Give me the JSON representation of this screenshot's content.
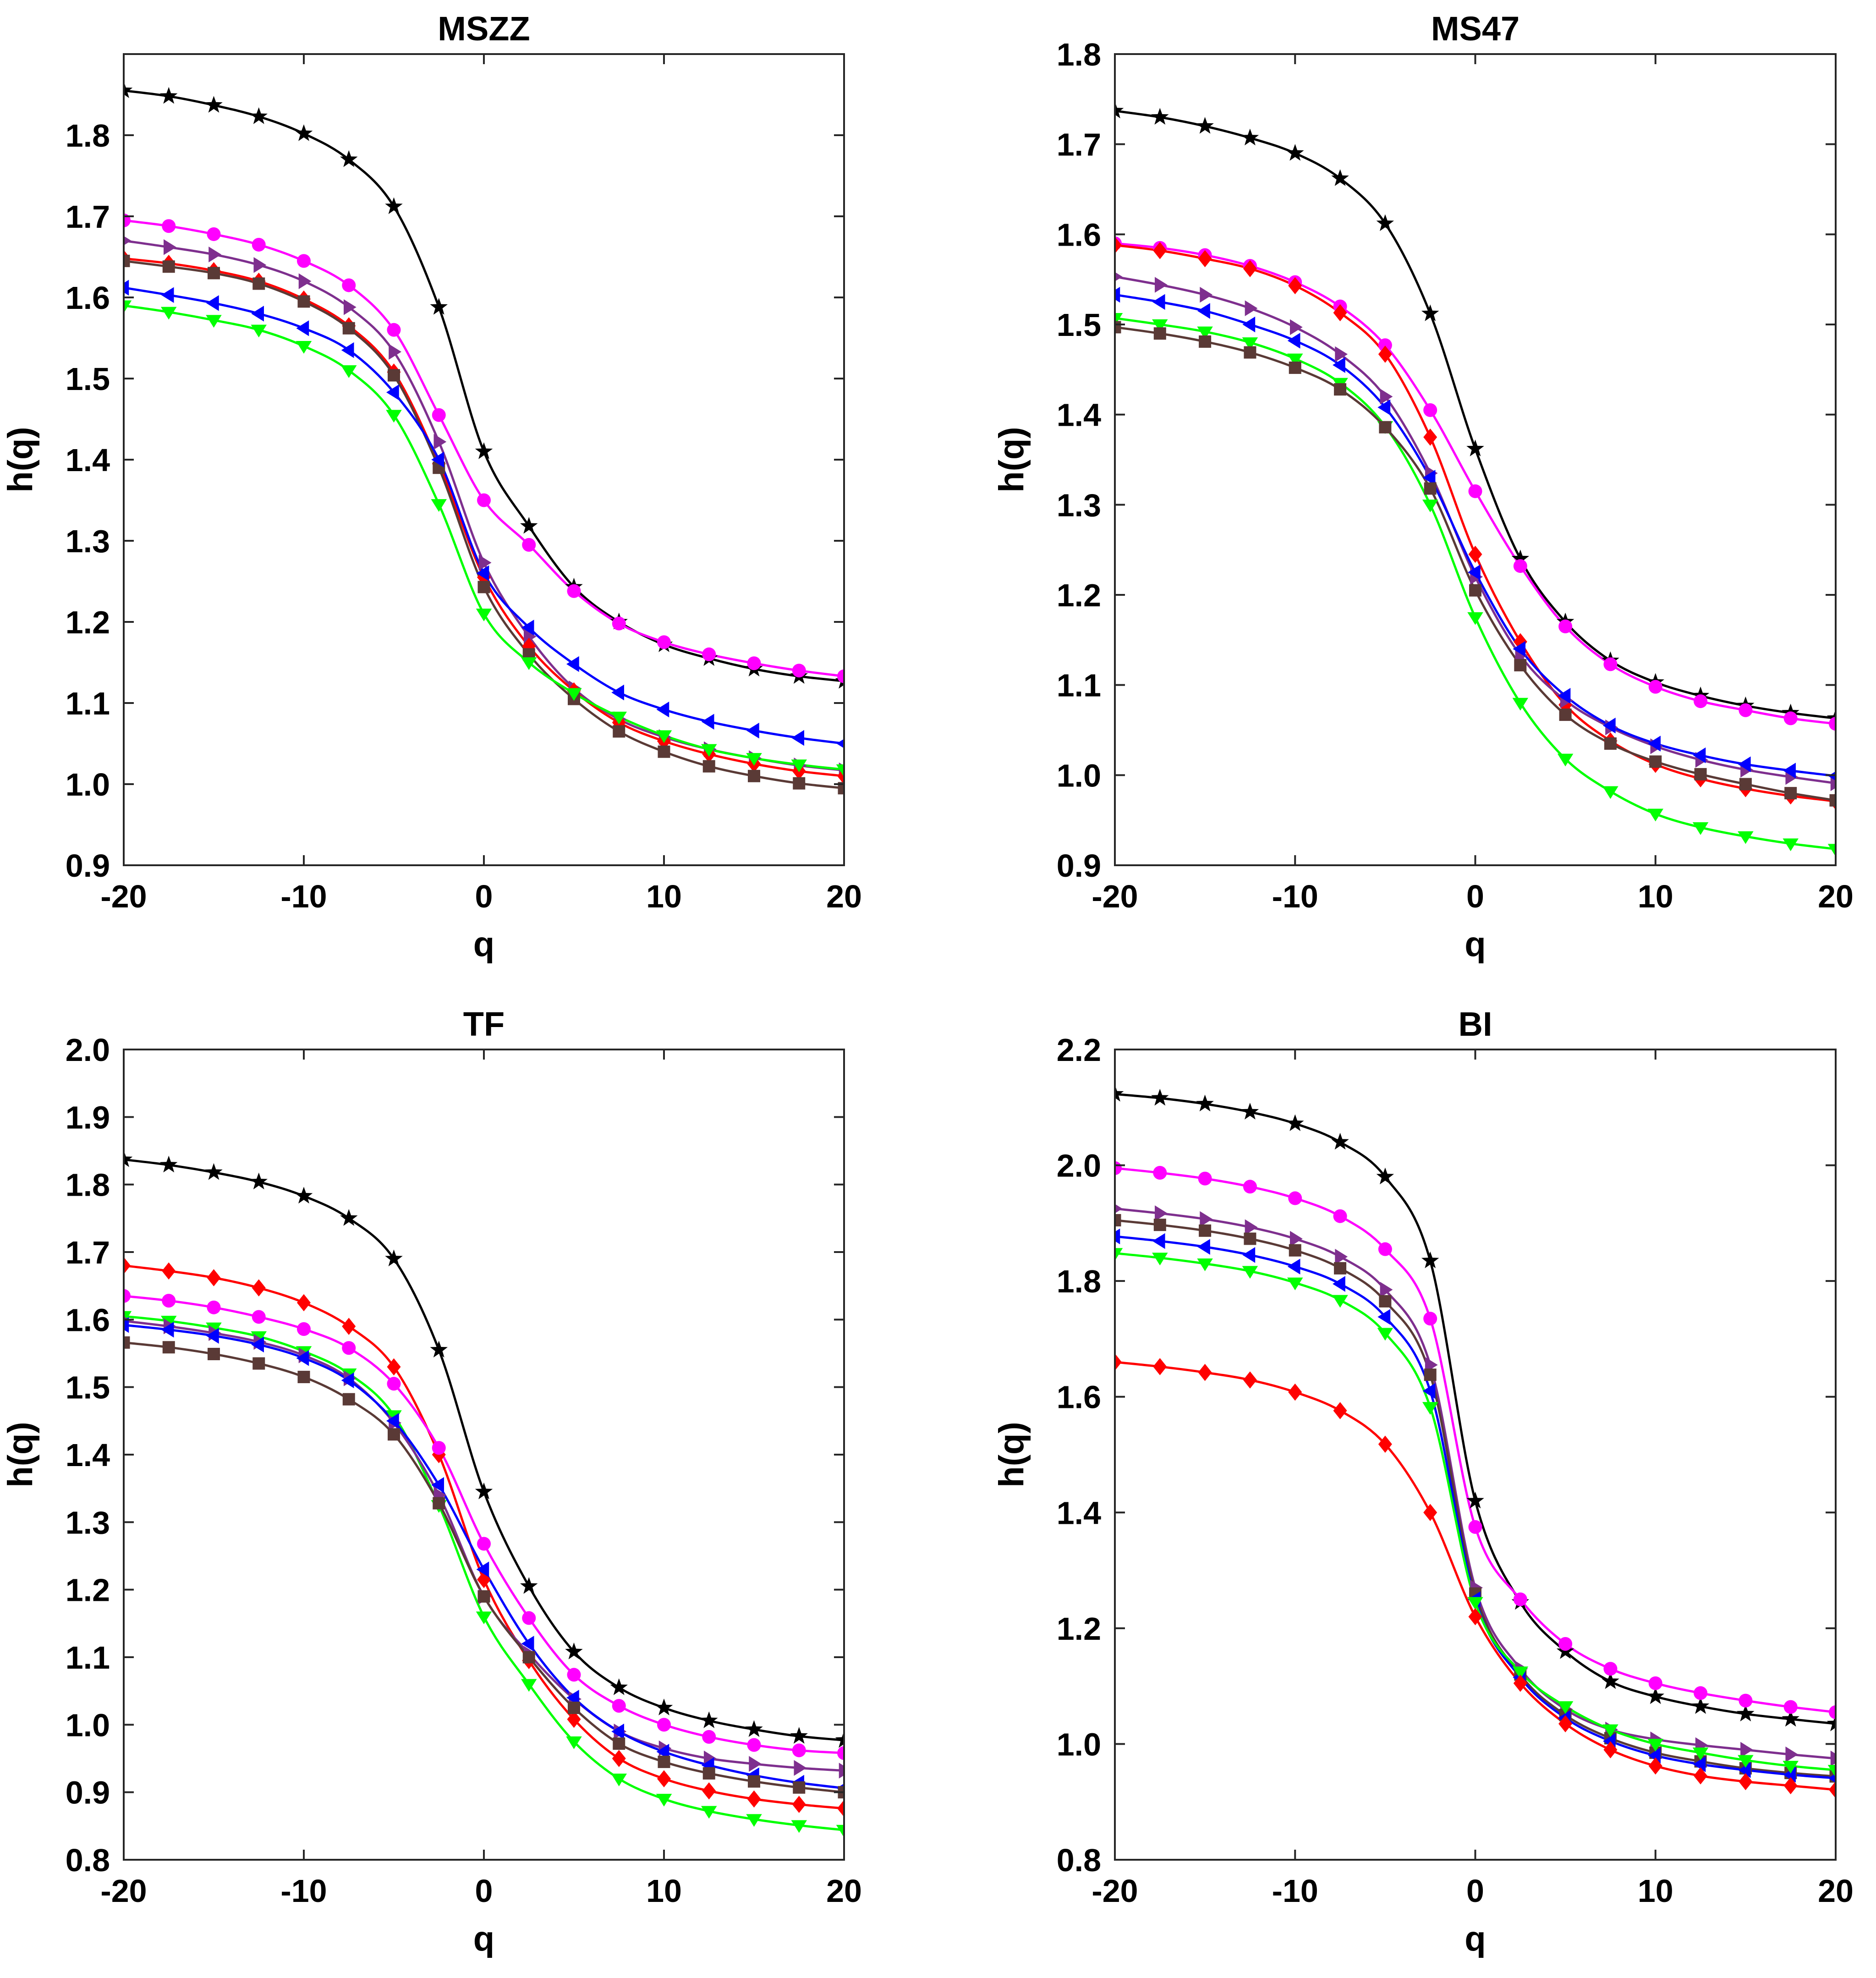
{
  "chart_data": [
    {
      "type": "line",
      "title": "MSZZ",
      "xlabel": "q",
      "ylabel": "h(q)",
      "xlim": [
        -20,
        20
      ],
      "ylim": [
        0.9,
        1.9
      ],
      "x_ticks": [
        -20,
        -10,
        0,
        10,
        20
      ],
      "x_tick_labels": [
        "-20",
        "-10",
        "0",
        "10",
        "20"
      ],
      "y_ticks": [
        0.9,
        1.0,
        1.1,
        1.2,
        1.3,
        1.4,
        1.5,
        1.6,
        1.7,
        1.8
      ],
      "y_tick_labels": [
        "0.9",
        "1.0",
        "1.1",
        "1.2",
        "1.3",
        "1.4",
        "1.5",
        "1.6",
        "1.7",
        "1.8"
      ],
      "x": [
        -20,
        -17.5,
        -15,
        -12.5,
        -10,
        -7.5,
        -5,
        -2.5,
        0,
        2.5,
        5,
        7.5,
        10,
        12.5,
        15,
        17.5,
        20
      ],
      "series": [
        {
          "name": "black",
          "color": "#000000",
          "marker": "star",
          "values": [
            1.855,
            1.848,
            1.837,
            1.823,
            1.802,
            1.77,
            1.712,
            1.588,
            1.41,
            1.318,
            1.243,
            1.2,
            1.172,
            1.155,
            1.142,
            1.133,
            1.127
          ]
        },
        {
          "name": "magenta",
          "color": "#ff00ff",
          "marker": "circle",
          "values": [
            1.695,
            1.688,
            1.678,
            1.665,
            1.645,
            1.615,
            1.56,
            1.455,
            1.35,
            1.295,
            1.238,
            1.198,
            1.175,
            1.16,
            1.149,
            1.14,
            1.133
          ]
        },
        {
          "name": "purple",
          "color": "#7e2f8e",
          "marker": "triangle-right",
          "values": [
            1.67,
            1.662,
            1.653,
            1.64,
            1.62,
            1.588,
            1.533,
            1.422,
            1.273,
            1.182,
            1.118,
            1.08,
            1.058,
            1.043,
            1.032,
            1.023,
            1.017
          ]
        },
        {
          "name": "red",
          "color": "#ff0000",
          "marker": "diamond",
          "values": [
            1.648,
            1.642,
            1.633,
            1.62,
            1.598,
            1.565,
            1.508,
            1.395,
            1.255,
            1.17,
            1.115,
            1.076,
            1.053,
            1.037,
            1.025,
            1.016,
            1.01
          ]
        },
        {
          "name": "brown",
          "color": "#5a3a36",
          "marker": "square",
          "values": [
            1.645,
            1.638,
            1.63,
            1.617,
            1.595,
            1.562,
            1.504,
            1.39,
            1.243,
            1.16,
            1.105,
            1.065,
            1.04,
            1.022,
            1.01,
            1.001,
            0.995
          ]
        },
        {
          "name": "blue",
          "color": "#0000ff",
          "marker": "triangle-left",
          "values": [
            1.612,
            1.603,
            1.593,
            1.58,
            1.562,
            1.535,
            1.483,
            1.4,
            1.26,
            1.193,
            1.148,
            1.113,
            1.092,
            1.077,
            1.066,
            1.057,
            1.05
          ]
        },
        {
          "name": "green",
          "color": "#00ff00",
          "marker": "triangle-down",
          "values": [
            1.59,
            1.582,
            1.572,
            1.56,
            1.54,
            1.51,
            1.455,
            1.345,
            1.21,
            1.15,
            1.112,
            1.083,
            1.06,
            1.043,
            1.032,
            1.024,
            1.018
          ]
        }
      ]
    },
    {
      "type": "line",
      "title": "MS47",
      "xlabel": "q",
      "ylabel": "h(q)",
      "xlim": [
        -20,
        20
      ],
      "ylim": [
        0.9,
        1.8
      ],
      "x_ticks": [
        -20,
        -10,
        0,
        10,
        20
      ],
      "x_tick_labels": [
        "-20",
        "-10",
        "0",
        "10",
        "20"
      ],
      "y_ticks": [
        0.9,
        1.0,
        1.1,
        1.2,
        1.3,
        1.4,
        1.5,
        1.6,
        1.7,
        1.8
      ],
      "y_tick_labels": [
        "0.9",
        "1.0",
        "1.1",
        "1.2",
        "1.3",
        "1.4",
        "1.5",
        "1.6",
        "1.7",
        "1.8"
      ],
      "x": [
        -20,
        -17.5,
        -15,
        -12.5,
        -10,
        -7.5,
        -5,
        -2.5,
        0,
        2.5,
        5,
        7.5,
        10,
        12.5,
        15,
        17.5,
        20
      ],
      "series": [
        {
          "name": "black",
          "color": "#000000",
          "marker": "star",
          "values": [
            1.737,
            1.73,
            1.72,
            1.707,
            1.69,
            1.662,
            1.612,
            1.512,
            1.362,
            1.24,
            1.17,
            1.127,
            1.103,
            1.088,
            1.077,
            1.069,
            1.063
          ]
        },
        {
          "name": "magenta",
          "color": "#ff00ff",
          "marker": "circle",
          "values": [
            1.59,
            1.585,
            1.577,
            1.565,
            1.547,
            1.52,
            1.477,
            1.405,
            1.315,
            1.232,
            1.165,
            1.123,
            1.098,
            1.082,
            1.072,
            1.063,
            1.057
          ]
        },
        {
          "name": "red",
          "color": "#ff0000",
          "marker": "diamond",
          "values": [
            1.588,
            1.582,
            1.573,
            1.562,
            1.543,
            1.513,
            1.467,
            1.375,
            1.245,
            1.148,
            1.078,
            1.038,
            1.012,
            0.996,
            0.985,
            0.977,
            0.971
          ]
        },
        {
          "name": "purple",
          "color": "#7e2f8e",
          "marker": "triangle-right",
          "values": [
            1.553,
            1.544,
            1.533,
            1.518,
            1.497,
            1.467,
            1.42,
            1.335,
            1.22,
            1.133,
            1.083,
            1.053,
            1.032,
            1.017,
            1.006,
            0.998,
            0.991
          ]
        },
        {
          "name": "blue",
          "color": "#0000ff",
          "marker": "triangle-left",
          "values": [
            1.533,
            1.525,
            1.515,
            1.5,
            1.482,
            1.455,
            1.408,
            1.33,
            1.225,
            1.14,
            1.088,
            1.055,
            1.035,
            1.022,
            1.012,
            1.005,
            0.999
          ]
        },
        {
          "name": "green",
          "color": "#00ff00",
          "marker": "triangle-down",
          "values": [
            1.507,
            1.5,
            1.492,
            1.48,
            1.462,
            1.435,
            1.387,
            1.3,
            1.175,
            1.08,
            1.018,
            0.982,
            0.957,
            0.942,
            0.932,
            0.924,
            0.918
          ]
        },
        {
          "name": "brown",
          "color": "#5a3a36",
          "marker": "square",
          "values": [
            1.497,
            1.49,
            1.481,
            1.469,
            1.452,
            1.428,
            1.386,
            1.318,
            1.205,
            1.122,
            1.067,
            1.035,
            1.015,
            1.001,
            0.99,
            0.98,
            0.972
          ]
        }
      ]
    },
    {
      "type": "line",
      "title": "TF",
      "xlabel": "q",
      "ylabel": "h(q)",
      "xlim": [
        -20,
        20
      ],
      "ylim": [
        0.8,
        2.0
      ],
      "x_ticks": [
        -20,
        -10,
        0,
        10,
        20
      ],
      "x_tick_labels": [
        "-20",
        "-10",
        "0",
        "10",
        "20"
      ],
      "y_ticks": [
        0.8,
        0.9,
        1.0,
        1.1,
        1.2,
        1.3,
        1.4,
        1.5,
        1.6,
        1.7,
        1.8,
        1.9,
        2.0
      ],
      "y_tick_labels": [
        "0.8",
        "0.9",
        "1.0",
        "1.1",
        "1.2",
        "1.3",
        "1.4",
        "1.5",
        "1.6",
        "1.7",
        "1.8",
        "1.9",
        "2.0"
      ],
      "x": [
        -20,
        -17.5,
        -15,
        -12.5,
        -10,
        -7.5,
        -5,
        -2.5,
        0,
        2.5,
        5,
        7.5,
        10,
        12.5,
        15,
        17.5,
        20
      ],
      "series": [
        {
          "name": "black",
          "color": "#000000",
          "marker": "star",
          "values": [
            1.837,
            1.829,
            1.818,
            1.804,
            1.783,
            1.75,
            1.69,
            1.555,
            1.345,
            1.205,
            1.108,
            1.055,
            1.025,
            1.006,
            0.993,
            0.983,
            0.977
          ]
        },
        {
          "name": "red",
          "color": "#ff0000",
          "marker": "diamond",
          "values": [
            1.68,
            1.672,
            1.662,
            1.647,
            1.625,
            1.59,
            1.53,
            1.4,
            1.215,
            1.095,
            1.008,
            0.95,
            0.92,
            0.902,
            0.89,
            0.882,
            0.876
          ]
        },
        {
          "name": "magenta",
          "color": "#ff00ff",
          "marker": "circle",
          "values": [
            1.635,
            1.628,
            1.618,
            1.604,
            1.586,
            1.558,
            1.505,
            1.41,
            1.268,
            1.158,
            1.074,
            1.028,
            1.0,
            0.982,
            0.97,
            0.962,
            0.958
          ]
        },
        {
          "name": "green",
          "color": "#00ff00",
          "marker": "triangle-down",
          "values": [
            1.605,
            1.598,
            1.588,
            1.575,
            1.553,
            1.52,
            1.458,
            1.325,
            1.16,
            1.06,
            0.975,
            0.92,
            0.89,
            0.872,
            0.86,
            0.851,
            0.844
          ]
        },
        {
          "name": "purple",
          "color": "#7e2f8e",
          "marker": "triangle-right",
          "values": [
            1.598,
            1.59,
            1.58,
            1.567,
            1.547,
            1.513,
            1.447,
            1.34,
            1.19,
            1.105,
            1.038,
            0.99,
            0.965,
            0.95,
            0.942,
            0.936,
            0.932
          ]
        },
        {
          "name": "blue",
          "color": "#0000ff",
          "marker": "triangle-left",
          "values": [
            1.592,
            1.585,
            1.576,
            1.563,
            1.543,
            1.51,
            1.45,
            1.355,
            1.23,
            1.12,
            1.04,
            0.99,
            0.96,
            0.94,
            0.925,
            0.914,
            0.906
          ]
        },
        {
          "name": "brown",
          "color": "#5a3a36",
          "marker": "square",
          "values": [
            1.566,
            1.559,
            1.549,
            1.535,
            1.515,
            1.482,
            1.43,
            1.328,
            1.19,
            1.1,
            1.025,
            0.972,
            0.945,
            0.928,
            0.916,
            0.907,
            0.9
          ]
        }
      ]
    },
    {
      "type": "line",
      "title": "BI",
      "xlabel": "q",
      "ylabel": "h(q)",
      "xlim": [
        -20,
        20
      ],
      "ylim": [
        0.8,
        2.2
      ],
      "x_ticks": [
        -20,
        -10,
        0,
        10,
        20
      ],
      "x_tick_labels": [
        "-20",
        "-10",
        "0",
        "10",
        "20"
      ],
      "y_ticks": [
        0.8,
        1.0,
        1.2,
        1.4,
        1.6,
        1.8,
        2.0,
        2.2
      ],
      "y_tick_labels": [
        "0.8",
        "1.0",
        "1.2",
        "1.4",
        "1.6",
        "1.8",
        "2.0",
        "2.2"
      ],
      "x": [
        -20,
        -17.5,
        -15,
        -12.5,
        -10,
        -7.5,
        -5,
        -2.5,
        0,
        2.5,
        5,
        7.5,
        10,
        12.5,
        15,
        17.5,
        20
      ],
      "series": [
        {
          "name": "black",
          "color": "#000000",
          "marker": "star",
          "values": [
            2.123,
            2.116,
            2.106,
            2.092,
            2.072,
            2.04,
            1.98,
            1.835,
            1.42,
            1.245,
            1.16,
            1.108,
            1.082,
            1.065,
            1.052,
            1.043,
            1.035
          ]
        },
        {
          "name": "magenta",
          "color": "#ff00ff",
          "marker": "circle",
          "values": [
            1.995,
            1.987,
            1.977,
            1.963,
            1.943,
            1.912,
            1.855,
            1.735,
            1.375,
            1.25,
            1.173,
            1.13,
            1.105,
            1.088,
            1.075,
            1.064,
            1.055
          ]
        },
        {
          "name": "purple",
          "color": "#7e2f8e",
          "marker": "triangle-right",
          "values": [
            1.925,
            1.917,
            1.907,
            1.893,
            1.873,
            1.842,
            1.785,
            1.655,
            1.27,
            1.13,
            1.06,
            1.025,
            1.008,
            0.998,
            0.99,
            0.982,
            0.975
          ]
        },
        {
          "name": "brown",
          "color": "#5a3a36",
          "marker": "square",
          "values": [
            1.905,
            1.897,
            1.887,
            1.873,
            1.853,
            1.822,
            1.765,
            1.638,
            1.26,
            1.12,
            1.05,
            1.01,
            0.985,
            0.97,
            0.958,
            0.95,
            0.944
          ]
        },
        {
          "name": "blue",
          "color": "#0000ff",
          "marker": "triangle-left",
          "values": [
            1.877,
            1.869,
            1.859,
            1.845,
            1.825,
            1.795,
            1.738,
            1.61,
            1.25,
            1.115,
            1.045,
            1.005,
            0.98,
            0.965,
            0.955,
            0.947,
            0.941
          ]
        },
        {
          "name": "green",
          "color": "#00ff00",
          "marker": "triangle-down",
          "values": [
            1.848,
            1.84,
            1.83,
            1.817,
            1.797,
            1.767,
            1.71,
            1.582,
            1.245,
            1.125,
            1.065,
            1.025,
            1.0,
            0.985,
            0.972,
            0.962,
            0.955
          ]
        },
        {
          "name": "red",
          "color": "#ff0000",
          "marker": "diamond",
          "values": [
            1.66,
            1.652,
            1.642,
            1.629,
            1.608,
            1.576,
            1.518,
            1.4,
            1.22,
            1.105,
            1.035,
            0.99,
            0.962,
            0.945,
            0.935,
            0.928,
            0.921
          ]
        }
      ]
    }
  ]
}
